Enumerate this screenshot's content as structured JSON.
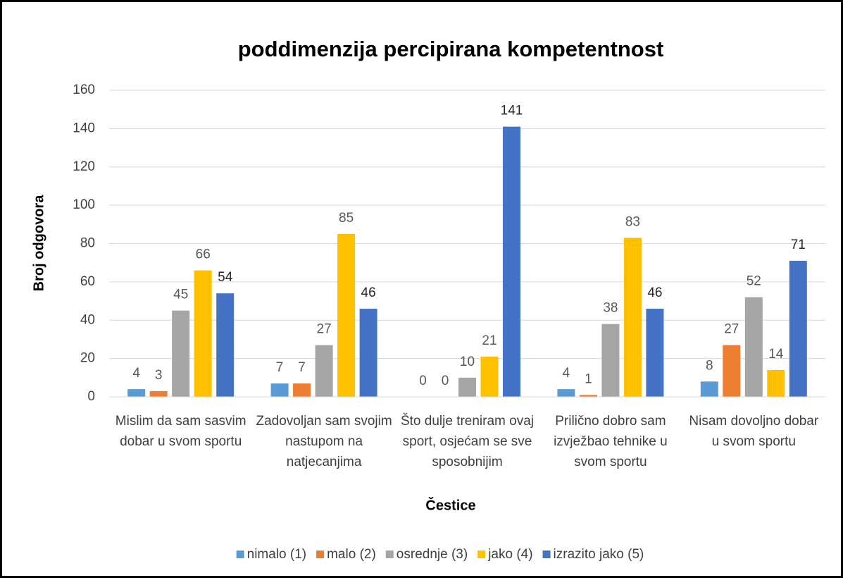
{
  "chart_data": {
    "type": "bar",
    "title": "poddimenzija percipirana kompetentnost",
    "x_label": "Čestice",
    "y_label": "Broj odgovora",
    "categories": [
      "Mislim da sam sasvim dobar u svom sportu",
      "Zadovoljan sam svojim nastupom na natjecanjima",
      "Što dulje treniram ovaj sport, osjećam se sve sposobnijim",
      "Prilično dobro sam izvježbao tehnike u svom sportu",
      "Nisam dovoljno dobar u svom sportu"
    ],
    "series": [
      {
        "name": "nimalo (1)",
        "color": "#5b9bd5",
        "values": [
          4,
          7,
          0,
          4,
          8
        ]
      },
      {
        "name": "malo (2)",
        "color": "#ed7d31",
        "values": [
          3,
          7,
          0,
          1,
          27
        ]
      },
      {
        "name": "osrednje (3)",
        "color": "#a5a5a5",
        "values": [
          45,
          27,
          10,
          38,
          52
        ]
      },
      {
        "name": "jako (4)",
        "color": "#ffc000",
        "values": [
          66,
          85,
          21,
          83,
          14
        ]
      },
      {
        "name": "izrazito jako (5)",
        "color": "#4472c4",
        "values": [
          54,
          46,
          141,
          46,
          71
        ]
      }
    ],
    "ylim": [
      0,
      160
    ],
    "yticks": [
      0,
      20,
      40,
      60,
      80,
      100,
      120,
      140,
      160
    ],
    "grid": true,
    "legend": "bottom"
  }
}
